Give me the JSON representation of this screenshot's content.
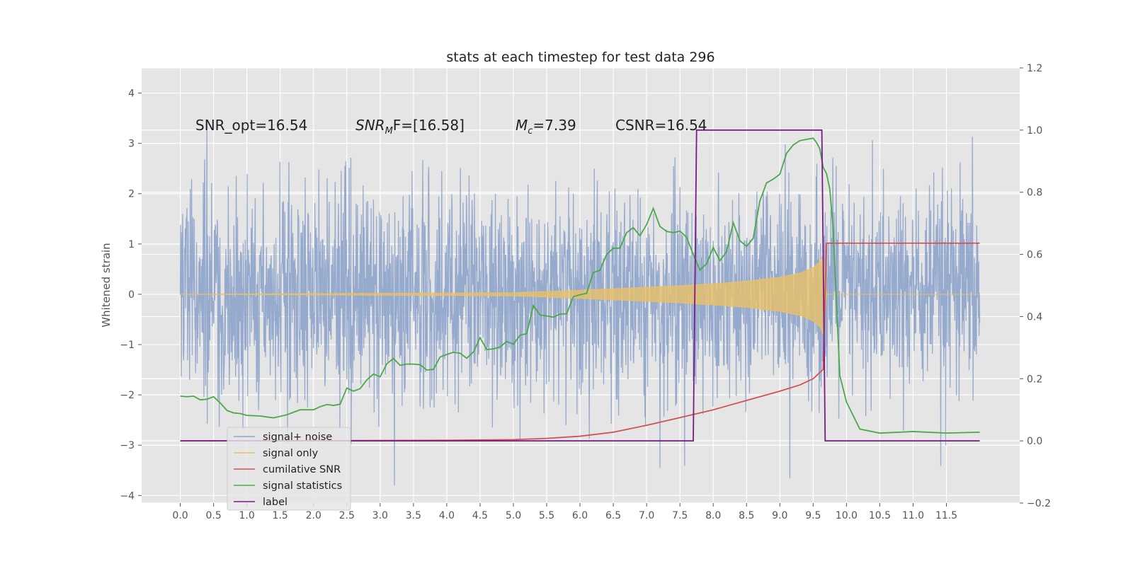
{
  "chart_data": {
    "type": "line",
    "title": "stats at each timestep for test data 296",
    "ylabel": "Whitened strain",
    "y2label": "",
    "xlim": [
      -0.58,
      12.6
    ],
    "ylim": [
      -4.15,
      4.5
    ],
    "y2lim": [
      -0.2,
      1.2
    ],
    "x_ticks": [
      "0.0",
      "0.5",
      "1.0",
      "1.5",
      "2.0",
      "2.5",
      "3.0",
      "3.5",
      "4.0",
      "4.5",
      "5.0",
      "5.5",
      "6.0",
      "6.5",
      "7.0",
      "7.5",
      "8.0",
      "8.5",
      "9.0",
      "9.5",
      "10.0",
      "10.5",
      "11.0",
      "11.5"
    ],
    "y_ticks": [
      "4",
      "3",
      "2",
      "1",
      "0",
      "−1",
      "−2",
      "−3",
      "−4"
    ],
    "y2_ticks": [
      "1.2",
      "1.0",
      "0.8",
      "0.6",
      "0.4",
      "0.2",
      "0.0",
      "−0.2"
    ],
    "grid": true,
    "legend_position": "lower-left",
    "annotations": [
      {
        "text": "SNR_opt=16.54"
      },
      {
        "text_base": "SNR",
        "text_sub": "M",
        "text_rest": "F=[16.58]"
      },
      {
        "text_base": "M",
        "text_sub": "c",
        "text_rest": "=7.39"
      },
      {
        "text": "CSNR=16.54"
      }
    ],
    "series": [
      {
        "name": "signal+ noise",
        "color": "#8fa5cc",
        "description_values": "noisy whitened strain, x from 0.0 to 12.0, mostly within ±2.4 with spikes to about 4.1 and down to about -3.8"
      },
      {
        "name": "signal only",
        "color": "#e8c068",
        "x": [
          0.0,
          5.0,
          6.0,
          6.5,
          7.0,
          7.5,
          8.0,
          8.5,
          9.0,
          9.3,
          9.5,
          9.6,
          9.65,
          9.7,
          12.0
        ],
        "envelope": [
          0.0,
          0.03,
          0.08,
          0.11,
          0.14,
          0.17,
          0.21,
          0.26,
          0.34,
          0.42,
          0.53,
          0.65,
          0.8,
          0.0,
          0.0
        ]
      },
      {
        "name": "cumilative SNR",
        "color": "#d45050",
        "x": [
          0.0,
          2.0,
          4.0,
          5.0,
          5.5,
          6.0,
          6.5,
          7.0,
          7.5,
          8.0,
          8.5,
          9.0,
          9.3,
          9.5,
          9.65,
          9.7,
          12.0
        ],
        "y2": [
          0.0,
          0.0005,
          0.002,
          0.004,
          0.008,
          0.015,
          0.028,
          0.05,
          0.075,
          0.1,
          0.13,
          0.16,
          0.18,
          0.2,
          0.23,
          0.636,
          0.636
        ]
      },
      {
        "name": "signal statistics",
        "color": "#4aa84a",
        "x": [
          0.0,
          0.1,
          0.2,
          0.3,
          0.4,
          0.5,
          0.6,
          0.7,
          0.8,
          0.9,
          1.0,
          1.2,
          1.4,
          1.6,
          1.8,
          2.0,
          2.1,
          2.2,
          2.3,
          2.4,
          2.5,
          2.6,
          2.7,
          2.8,
          2.9,
          3.0,
          3.1,
          3.2,
          3.3,
          3.4,
          3.5,
          3.6,
          3.7,
          3.8,
          3.9,
          4.0,
          4.1,
          4.2,
          4.3,
          4.4,
          4.5,
          4.6,
          4.7,
          4.8,
          4.9,
          5.0,
          5.1,
          5.2,
          5.3,
          5.4,
          5.5,
          5.6,
          5.7,
          5.8,
          5.9,
          6.0,
          6.1,
          6.2,
          6.3,
          6.4,
          6.5,
          6.6,
          6.7,
          6.8,
          6.9,
          7.0,
          7.1,
          7.2,
          7.3,
          7.4,
          7.5,
          7.6,
          7.7,
          7.8,
          7.9,
          8.0,
          8.1,
          8.2,
          8.3,
          8.4,
          8.5,
          8.6,
          8.7,
          8.8,
          8.9,
          9.0,
          9.1,
          9.2,
          9.3,
          9.4,
          9.5,
          9.55,
          9.6,
          9.65,
          9.7,
          9.75,
          9.8,
          9.9,
          10.0,
          10.2,
          10.5,
          11.0,
          11.5,
          12.0
        ],
        "y2": [
          0.144,
          0.142,
          0.144,
          0.132,
          0.134,
          0.142,
          0.122,
          0.098,
          0.09,
          0.088,
          0.082,
          0.08,
          0.074,
          0.084,
          0.1,
          0.1,
          0.11,
          0.117,
          0.114,
          0.118,
          0.17,
          0.16,
          0.168,
          0.196,
          0.215,
          0.206,
          0.248,
          0.265,
          0.243,
          0.247,
          0.247,
          0.245,
          0.228,
          0.23,
          0.27,
          0.278,
          0.285,
          0.282,
          0.266,
          0.286,
          0.332,
          0.294,
          0.296,
          0.302,
          0.32,
          0.311,
          0.34,
          0.345,
          0.435,
          0.405,
          0.402,
          0.398,
          0.408,
          0.409,
          0.464,
          0.47,
          0.475,
          0.542,
          0.549,
          0.6,
          0.62,
          0.62,
          0.67,
          0.686,
          0.66,
          0.696,
          0.748,
          0.69,
          0.674,
          0.67,
          0.675,
          0.655,
          0.6,
          0.55,
          0.57,
          0.622,
          0.58,
          0.609,
          0.702,
          0.644,
          0.626,
          0.652,
          0.772,
          0.83,
          0.842,
          0.858,
          0.925,
          0.952,
          0.966,
          0.97,
          0.974,
          0.96,
          0.94,
          0.88,
          0.86,
          0.81,
          0.68,
          0.21,
          0.125,
          0.038,
          0.025,
          0.03,
          0.025,
          0.028,
          0.02,
          0.02,
          0.02
        ]
      },
      {
        "name": "label",
        "color": "#7a1a86",
        "x": [
          0.0,
          7.7,
          7.75,
          9.63,
          9.68,
          12.0
        ],
        "y2": [
          0.0,
          0.0,
          1.0,
          1.0,
          0.0,
          0.0
        ]
      }
    ]
  }
}
